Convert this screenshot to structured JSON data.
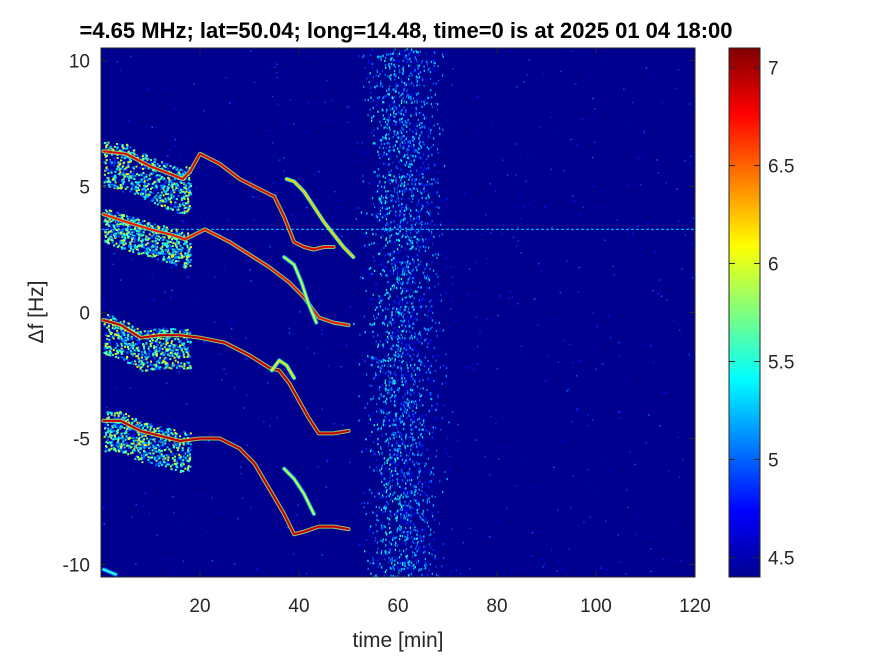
{
  "chart_data": {
    "type": "heatmap",
    "title": "=4.65 MHz;  lat=50.04; long=14.48, time=0 is at 2025 01 04 18:00",
    "xlabel": "time [min]",
    "ylabel": "Δf [Hz]",
    "xlim": [
      0,
      120
    ],
    "ylim": [
      -10.5,
      10.5
    ],
    "x_ticks": [
      20,
      40,
      60,
      80,
      100,
      120
    ],
    "y_ticks": [
      -10,
      -5,
      0,
      5,
      10
    ],
    "x_tick_labels": [
      "20",
      "40",
      "60",
      "80",
      "100",
      "120"
    ],
    "y_tick_labels": [
      "-10",
      "-5",
      "0",
      "5",
      "10"
    ],
    "colorbar": {
      "range": [
        4.4,
        7.1
      ],
      "ticks": [
        4.5,
        5,
        5.5,
        6,
        6.5,
        7
      ],
      "tick_labels": [
        "4.5",
        "5",
        "5.5",
        "6",
        "6.5",
        "7"
      ],
      "colormap": "jet"
    },
    "background_color": "#00008f",
    "traces": [
      {
        "points": [
          [
            0.5,
            6.4
          ],
          [
            5,
            6.3
          ],
          [
            10,
            5.8
          ],
          [
            14,
            5.5
          ],
          [
            16.5,
            5.3
          ],
          [
            18,
            5.6
          ],
          [
            20,
            6.3
          ],
          [
            24,
            5.9
          ],
          [
            28,
            5.3
          ],
          [
            32,
            4.9
          ],
          [
            35,
            4.6
          ],
          [
            37,
            3.8
          ],
          [
            39,
            2.8
          ],
          [
            41,
            2.6
          ],
          [
            43,
            2.5
          ],
          [
            45,
            2.6
          ],
          [
            47,
            2.6
          ]
        ],
        "peak": 6.9
      },
      {
        "points": [
          [
            37.5,
            5.3
          ],
          [
            39,
            5.2
          ],
          [
            41,
            4.8
          ],
          [
            43,
            4.2
          ],
          [
            45,
            3.6
          ],
          [
            47,
            3.1
          ],
          [
            49,
            2.6
          ],
          [
            51,
            2.2
          ]
        ],
        "peak": 6.3
      },
      {
        "points": [
          [
            0.5,
            3.9
          ],
          [
            5,
            3.6
          ],
          [
            10,
            3.3
          ],
          [
            14,
            3.1
          ],
          [
            17,
            2.9
          ],
          [
            21,
            3.3
          ],
          [
            26,
            2.8
          ],
          [
            30,
            2.3
          ],
          [
            34,
            1.8
          ],
          [
            38,
            1.2
          ],
          [
            41,
            0.6
          ],
          [
            44,
            -0.2
          ],
          [
            47,
            -0.4
          ],
          [
            50,
            -0.5
          ]
        ],
        "peak": 6.8
      },
      {
        "points": [
          [
            37,
            2.2
          ],
          [
            39,
            1.9
          ],
          [
            40.5,
            1.2
          ],
          [
            42,
            0.3
          ],
          [
            43.5,
            -0.4
          ]
        ],
        "peak": 6.0
      },
      {
        "points": [
          [
            0.5,
            -0.3
          ],
          [
            4,
            -0.5
          ],
          [
            8,
            -1.0
          ],
          [
            12,
            -0.9
          ],
          [
            16,
            -0.9
          ],
          [
            20,
            -1.0
          ],
          [
            25,
            -1.2
          ],
          [
            30,
            -1.7
          ],
          [
            34,
            -2.2
          ],
          [
            36,
            -2.3
          ],
          [
            38,
            -2.8
          ],
          [
            40,
            -3.5
          ],
          [
            42,
            -4.2
          ],
          [
            44,
            -4.8
          ],
          [
            47,
            -4.8
          ],
          [
            50,
            -4.7
          ]
        ],
        "peak": 7.0
      },
      {
        "points": [
          [
            34.5,
            -2.3
          ],
          [
            36,
            -1.9
          ],
          [
            37.5,
            -2.1
          ],
          [
            39,
            -2.6
          ]
        ],
        "peak": 6.2
      },
      {
        "points": [
          [
            0.5,
            -4.3
          ],
          [
            4,
            -4.3
          ],
          [
            8,
            -4.7
          ],
          [
            12,
            -4.9
          ],
          [
            16,
            -5.1
          ],
          [
            20,
            -5.0
          ],
          [
            24,
            -5.0
          ],
          [
            28,
            -5.4
          ],
          [
            31,
            -6.0
          ],
          [
            34,
            -7.0
          ],
          [
            37,
            -8.0
          ],
          [
            39,
            -8.8
          ],
          [
            41,
            -8.7
          ],
          [
            44,
            -8.5
          ],
          [
            47,
            -8.5
          ],
          [
            50,
            -8.6
          ]
        ],
        "peak": 7.0
      },
      {
        "points": [
          [
            37,
            -6.2
          ],
          [
            39,
            -6.6
          ],
          [
            41,
            -7.2
          ],
          [
            43,
            -8.0
          ]
        ],
        "peak": 6.0
      },
      {
        "points": [
          [
            0.5,
            -10.2
          ],
          [
            3,
            -10.4
          ]
        ],
        "peak": 5.6
      }
    ],
    "fuzz_regions": [
      {
        "x": [
          0.5,
          18
        ],
        "center_offset": -0.5,
        "spread": 0.9,
        "trace": 0
      },
      {
        "x": [
          0.5,
          18
        ],
        "center_offset": -0.4,
        "spread": 0.7,
        "trace": 2
      },
      {
        "x": [
          0.5,
          18
        ],
        "center_offset": -0.5,
        "spread": 0.8,
        "trace": 4
      },
      {
        "x": [
          0.5,
          18
        ],
        "center_offset": -0.4,
        "spread": 0.8,
        "trace": 6
      }
    ],
    "horizontal_line": {
      "y": 3.3,
      "x": [
        0,
        120
      ],
      "level": 5.3
    },
    "noise_band": {
      "x": [
        50,
        72
      ],
      "peak_x": 58,
      "level": 5.1
    }
  }
}
